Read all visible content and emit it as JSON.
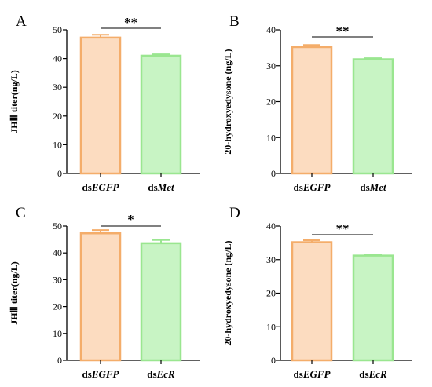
{
  "colors": {
    "control_fill": "#fcdcc0",
    "control_edge": "#f4ad6a",
    "treat_fill": "#c8f4c4",
    "treat_edge": "#9ae690",
    "axis": "#000000"
  },
  "chart_data": [
    {
      "type": "bar",
      "panel": "A",
      "ylabel": "JHⅢ titer(ng/L)",
      "ylim": [
        0,
        50
      ],
      "yticks": [
        0,
        10,
        20,
        30,
        40,
        50
      ],
      "categories": [
        {
          "prefix": "ds",
          "name": "EGFP"
        },
        {
          "prefix": "ds",
          "name": "Met"
        }
      ],
      "values": [
        47.3,
        41.0
      ],
      "errors": [
        1.0,
        0.5
      ],
      "significance": "**"
    },
    {
      "type": "bar",
      "panel": "B",
      "ylabel": "20-hydroxyedysone (ng/L)",
      "ylim": [
        0,
        40
      ],
      "yticks": [
        0,
        10,
        20,
        30,
        40
      ],
      "categories": [
        {
          "prefix": "ds",
          "name": "EGFP"
        },
        {
          "prefix": "ds",
          "name": "Met"
        }
      ],
      "values": [
        35.2,
        31.8
      ],
      "errors": [
        0.6,
        0.3
      ],
      "significance": "**"
    },
    {
      "type": "bar",
      "panel": "C",
      "ylabel": "JHⅢ titer(ng/L)",
      "ylim": [
        0,
        50
      ],
      "yticks": [
        0,
        10,
        20,
        30,
        40,
        50
      ],
      "categories": [
        {
          "prefix": "ds",
          "name": "EGFP"
        },
        {
          "prefix": "ds",
          "name": "EcR"
        }
      ],
      "values": [
        47.3,
        43.6
      ],
      "errors": [
        1.2,
        1.2
      ],
      "significance": "*"
    },
    {
      "type": "bar",
      "panel": "D",
      "ylabel": "20-hydroxyedysone (ng/L)",
      "ylim": [
        0,
        40
      ],
      "yticks": [
        0,
        10,
        20,
        30,
        40
      ],
      "categories": [
        {
          "prefix": "ds",
          "name": "EGFP"
        },
        {
          "prefix": "ds",
          "name": "EcR"
        }
      ],
      "values": [
        35.2,
        31.2
      ],
      "errors": [
        0.6,
        0.2
      ],
      "significance": "**"
    }
  ]
}
